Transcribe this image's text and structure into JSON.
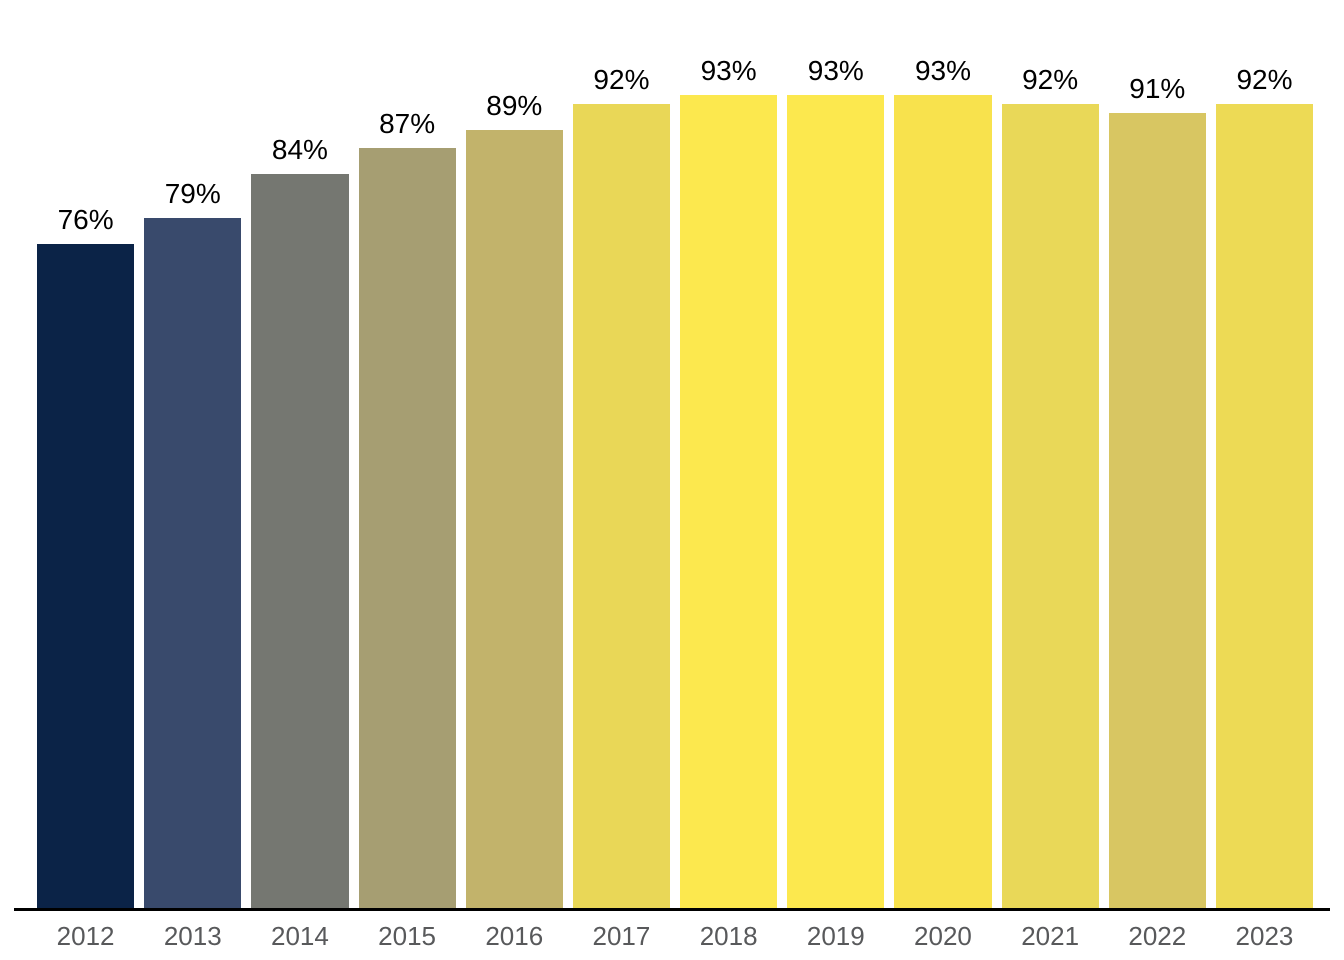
{
  "chart_data": {
    "type": "bar",
    "title": "",
    "xlabel": "",
    "ylabel": "",
    "categories": [
      "2012",
      "2013",
      "2014",
      "2015",
      "2016",
      "2017",
      "2018",
      "2019",
      "2020",
      "2021",
      "2022",
      "2023"
    ],
    "values": [
      76,
      79,
      84,
      87,
      89,
      92,
      93,
      93,
      93,
      92,
      91,
      92
    ],
    "value_labels": [
      "76%",
      "79%",
      "84%",
      "87%",
      "89%",
      "92%",
      "93%",
      "93%",
      "93%",
      "92%",
      "91%",
      "92%"
    ],
    "bar_colors": [
      "#0b2347",
      "#394a6c",
      "#757771",
      "#a69e72",
      "#c2b36b",
      "#e9d757",
      "#fce84e",
      "#fce84e",
      "#f8e24d",
      "#e9d858",
      "#d8c662",
      "#edda55"
    ],
    "ylim": [
      0,
      100
    ],
    "grid": false,
    "legend": false,
    "data_label_position": "above-bar",
    "colors": {
      "background": "#ffffff",
      "axis_line": "#000000",
      "value_label": "#000000",
      "tick_label": "#58595b"
    }
  }
}
